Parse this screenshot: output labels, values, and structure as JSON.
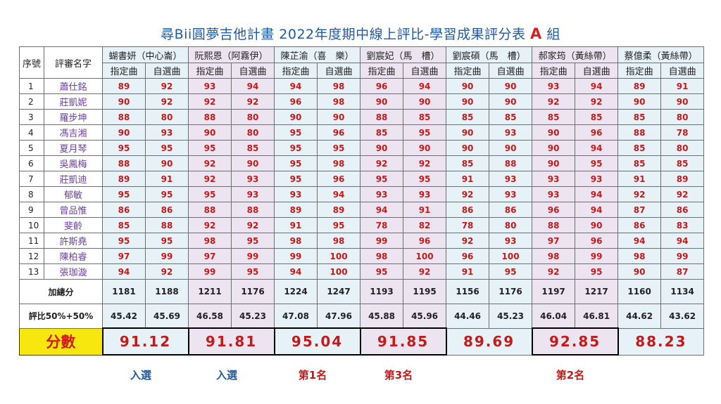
{
  "title": {
    "main": "尋Bii圓夢吉他計畫  2022年度期中線上評比-學習成果評分表",
    "group": "A",
    "suffix": "組"
  },
  "header": {
    "seq": "序號",
    "judge": "評審名字",
    "set_piece": "指定曲",
    "free_piece": "自選曲"
  },
  "contestants": [
    {
      "name": "蝴書妍（中心崙）"
    },
    {
      "name": "阮熙恩（阿霧伊）"
    },
    {
      "name": "陳芷渝（喜　樂）"
    },
    {
      "name": "劉宸妃（馬　槽）"
    },
    {
      "name": "劉宸碩（馬　槽）"
    },
    {
      "name": "郝家筠（黃絲帶）"
    },
    {
      "name": "蔡億柔（黃絲帶）"
    }
  ],
  "judges": [
    {
      "no": "1",
      "name": "蕭仕銘",
      "scores": [
        "89",
        "92",
        "93",
        "94",
        "94",
        "98",
        "96",
        "94",
        "90",
        "90",
        "93",
        "94",
        "89",
        "91"
      ]
    },
    {
      "no": "2",
      "name": "莊凱妮",
      "scores": [
        "90",
        "92",
        "92",
        "92",
        "96",
        "98",
        "90",
        "90",
        "90",
        "90",
        "92",
        "92",
        "90",
        "90"
      ]
    },
    {
      "no": "3",
      "name": "羅步坤",
      "scores": [
        "88",
        "80",
        "88",
        "80",
        "90",
        "90",
        "88",
        "85",
        "85",
        "85",
        "85",
        "85",
        "85",
        "80"
      ]
    },
    {
      "no": "4",
      "name": "馮吉湘",
      "scores": [
        "90",
        "93",
        "90",
        "80",
        "95",
        "96",
        "85",
        "95",
        "90",
        "93",
        "90",
        "96",
        "88",
        "78"
      ]
    },
    {
      "no": "5",
      "name": "夏月琴",
      "scores": [
        "95",
        "95",
        "95",
        "85",
        "95",
        "95",
        "90",
        "90",
        "90",
        "90",
        "90",
        "94",
        "85",
        "80"
      ]
    },
    {
      "no": "6",
      "name": "吳鳳梅",
      "scores": [
        "88",
        "90",
        "92",
        "90",
        "95",
        "98",
        "92",
        "92",
        "85",
        "88",
        "90",
        "95",
        "85",
        "85"
      ]
    },
    {
      "no": "7",
      "name": "莊凱迪",
      "scores": [
        "89",
        "91",
        "92",
        "93",
        "95",
        "96",
        "95",
        "95",
        "91",
        "93",
        "93",
        "93",
        "91",
        "89"
      ]
    },
    {
      "no": "8",
      "name": "郁敏",
      "scores": [
        "95",
        "95",
        "95",
        "93",
        "93",
        "94",
        "93",
        "93",
        "92",
        "93",
        "93",
        "94",
        "92",
        "92"
      ]
    },
    {
      "no": "9",
      "name": "曾品惟",
      "scores": [
        "86",
        "86",
        "88",
        "88",
        "89",
        "89",
        "94",
        "91",
        "86",
        "86",
        "96",
        "94",
        "87",
        "86"
      ]
    },
    {
      "no": "10",
      "name": "斐齡",
      "scores": [
        "85",
        "88",
        "92",
        "92",
        "91",
        "95",
        "78",
        "82",
        "78",
        "80",
        "88",
        "90",
        "86",
        "83"
      ]
    },
    {
      "no": "11",
      "name": "許斯堯",
      "scores": [
        "95",
        "95",
        "98",
        "95",
        "98",
        "98",
        "99",
        "96",
        "92",
        "93",
        "97",
        "96",
        "94",
        "94"
      ]
    },
    {
      "no": "12",
      "name": "陳柏睿",
      "scores": [
        "97",
        "99",
        "97",
        "99",
        "99",
        "100",
        "98",
        "100",
        "96",
        "100",
        "98",
        "99",
        "98",
        "99"
      ]
    },
    {
      "no": "13",
      "name": "張珈漩",
      "scores": [
        "94",
        "92",
        "99",
        "95",
        "94",
        "100",
        "95",
        "92",
        "91",
        "95",
        "92",
        "95",
        "90",
        "87"
      ]
    }
  ],
  "totals": {
    "label": "加總分",
    "values": [
      "1181",
      "1188",
      "1211",
      "1176",
      "1224",
      "1247",
      "1193",
      "1195",
      "1156",
      "1176",
      "1197",
      "1217",
      "1160",
      "1134"
    ]
  },
  "weighted": {
    "label": "評比50%+50%",
    "values": [
      "45.42",
      "45.69",
      "46.58",
      "45.23",
      "47.08",
      "47.96",
      "45.88",
      "45.96",
      "44.46",
      "45.23",
      "46.04",
      "46.81",
      "44.62",
      "43.62"
    ]
  },
  "final": {
    "label": "分數",
    "values": [
      "91.12",
      "91.81",
      "95.04",
      "91.85",
      "89.69",
      "92.85",
      "88.23"
    ]
  },
  "results": [
    {
      "text": "入選",
      "type": "pick"
    },
    {
      "text": "入選",
      "type": "pick"
    },
    {
      "text": "第1名",
      "type": "rank"
    },
    {
      "text": "第3名",
      "type": "rank"
    },
    {
      "text": "",
      "type": "none"
    },
    {
      "text": "第2名",
      "type": "rank"
    },
    {
      "text": "",
      "type": "none"
    }
  ],
  "colors": {
    "title": "#1f5aa6",
    "score": "#c41a1a",
    "judge": "#6a3f9c",
    "label_bg": "#f7e70f",
    "col_blue": "#e6f1f8",
    "col_purple": "#ece5f1"
  }
}
